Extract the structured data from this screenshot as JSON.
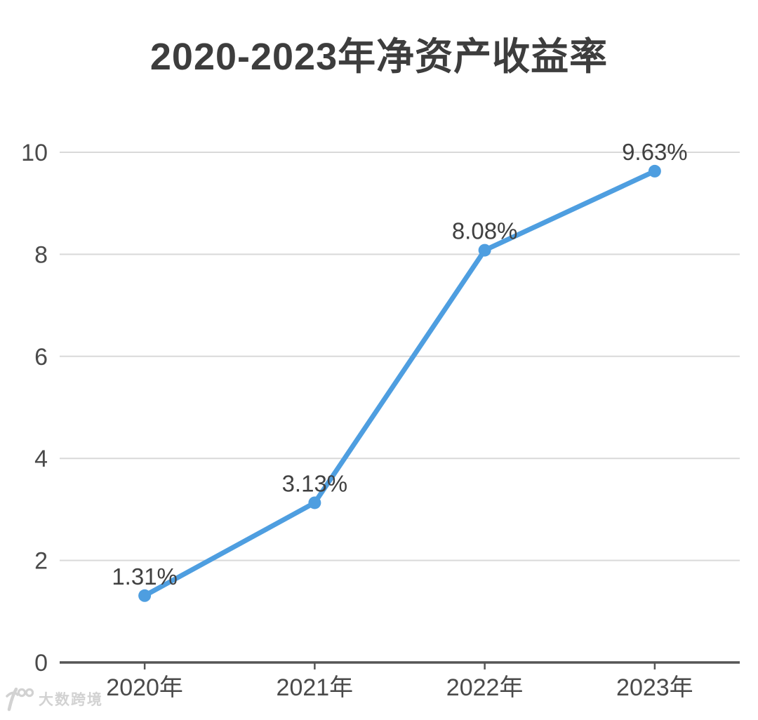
{
  "chart_data": {
    "type": "line",
    "title": "2020-2023年净资产收益率",
    "categories": [
      "2020年",
      "2021年",
      "2022年",
      "2023年"
    ],
    "series": [
      {
        "name": "净资产收益率",
        "values": [
          1.31,
          3.13,
          8.08,
          9.63
        ]
      }
    ],
    "point_labels": [
      "1.31%",
      "3.13%",
      "8.08%",
      "9.63%"
    ],
    "xlabel": "",
    "ylabel": "",
    "ylim": [
      0,
      10
    ],
    "yticks": [
      0,
      2,
      4,
      6,
      8,
      10
    ],
    "ytick_labels": [
      "0",
      "2",
      "4",
      "6",
      "8",
      "10"
    ],
    "grid": true,
    "legend_position": "none",
    "colors": {
      "line": "#4E9EE0",
      "marker": "#4E9EE0",
      "grid": "#D9D9D9",
      "axis": "#555555",
      "tick_label": "#4a4a4a",
      "point_label": "#404040",
      "title": "#3d3d3d",
      "background": "#ffffff"
    }
  },
  "watermark": {
    "logo_icon": "100-logo",
    "text": "大数跨境"
  }
}
